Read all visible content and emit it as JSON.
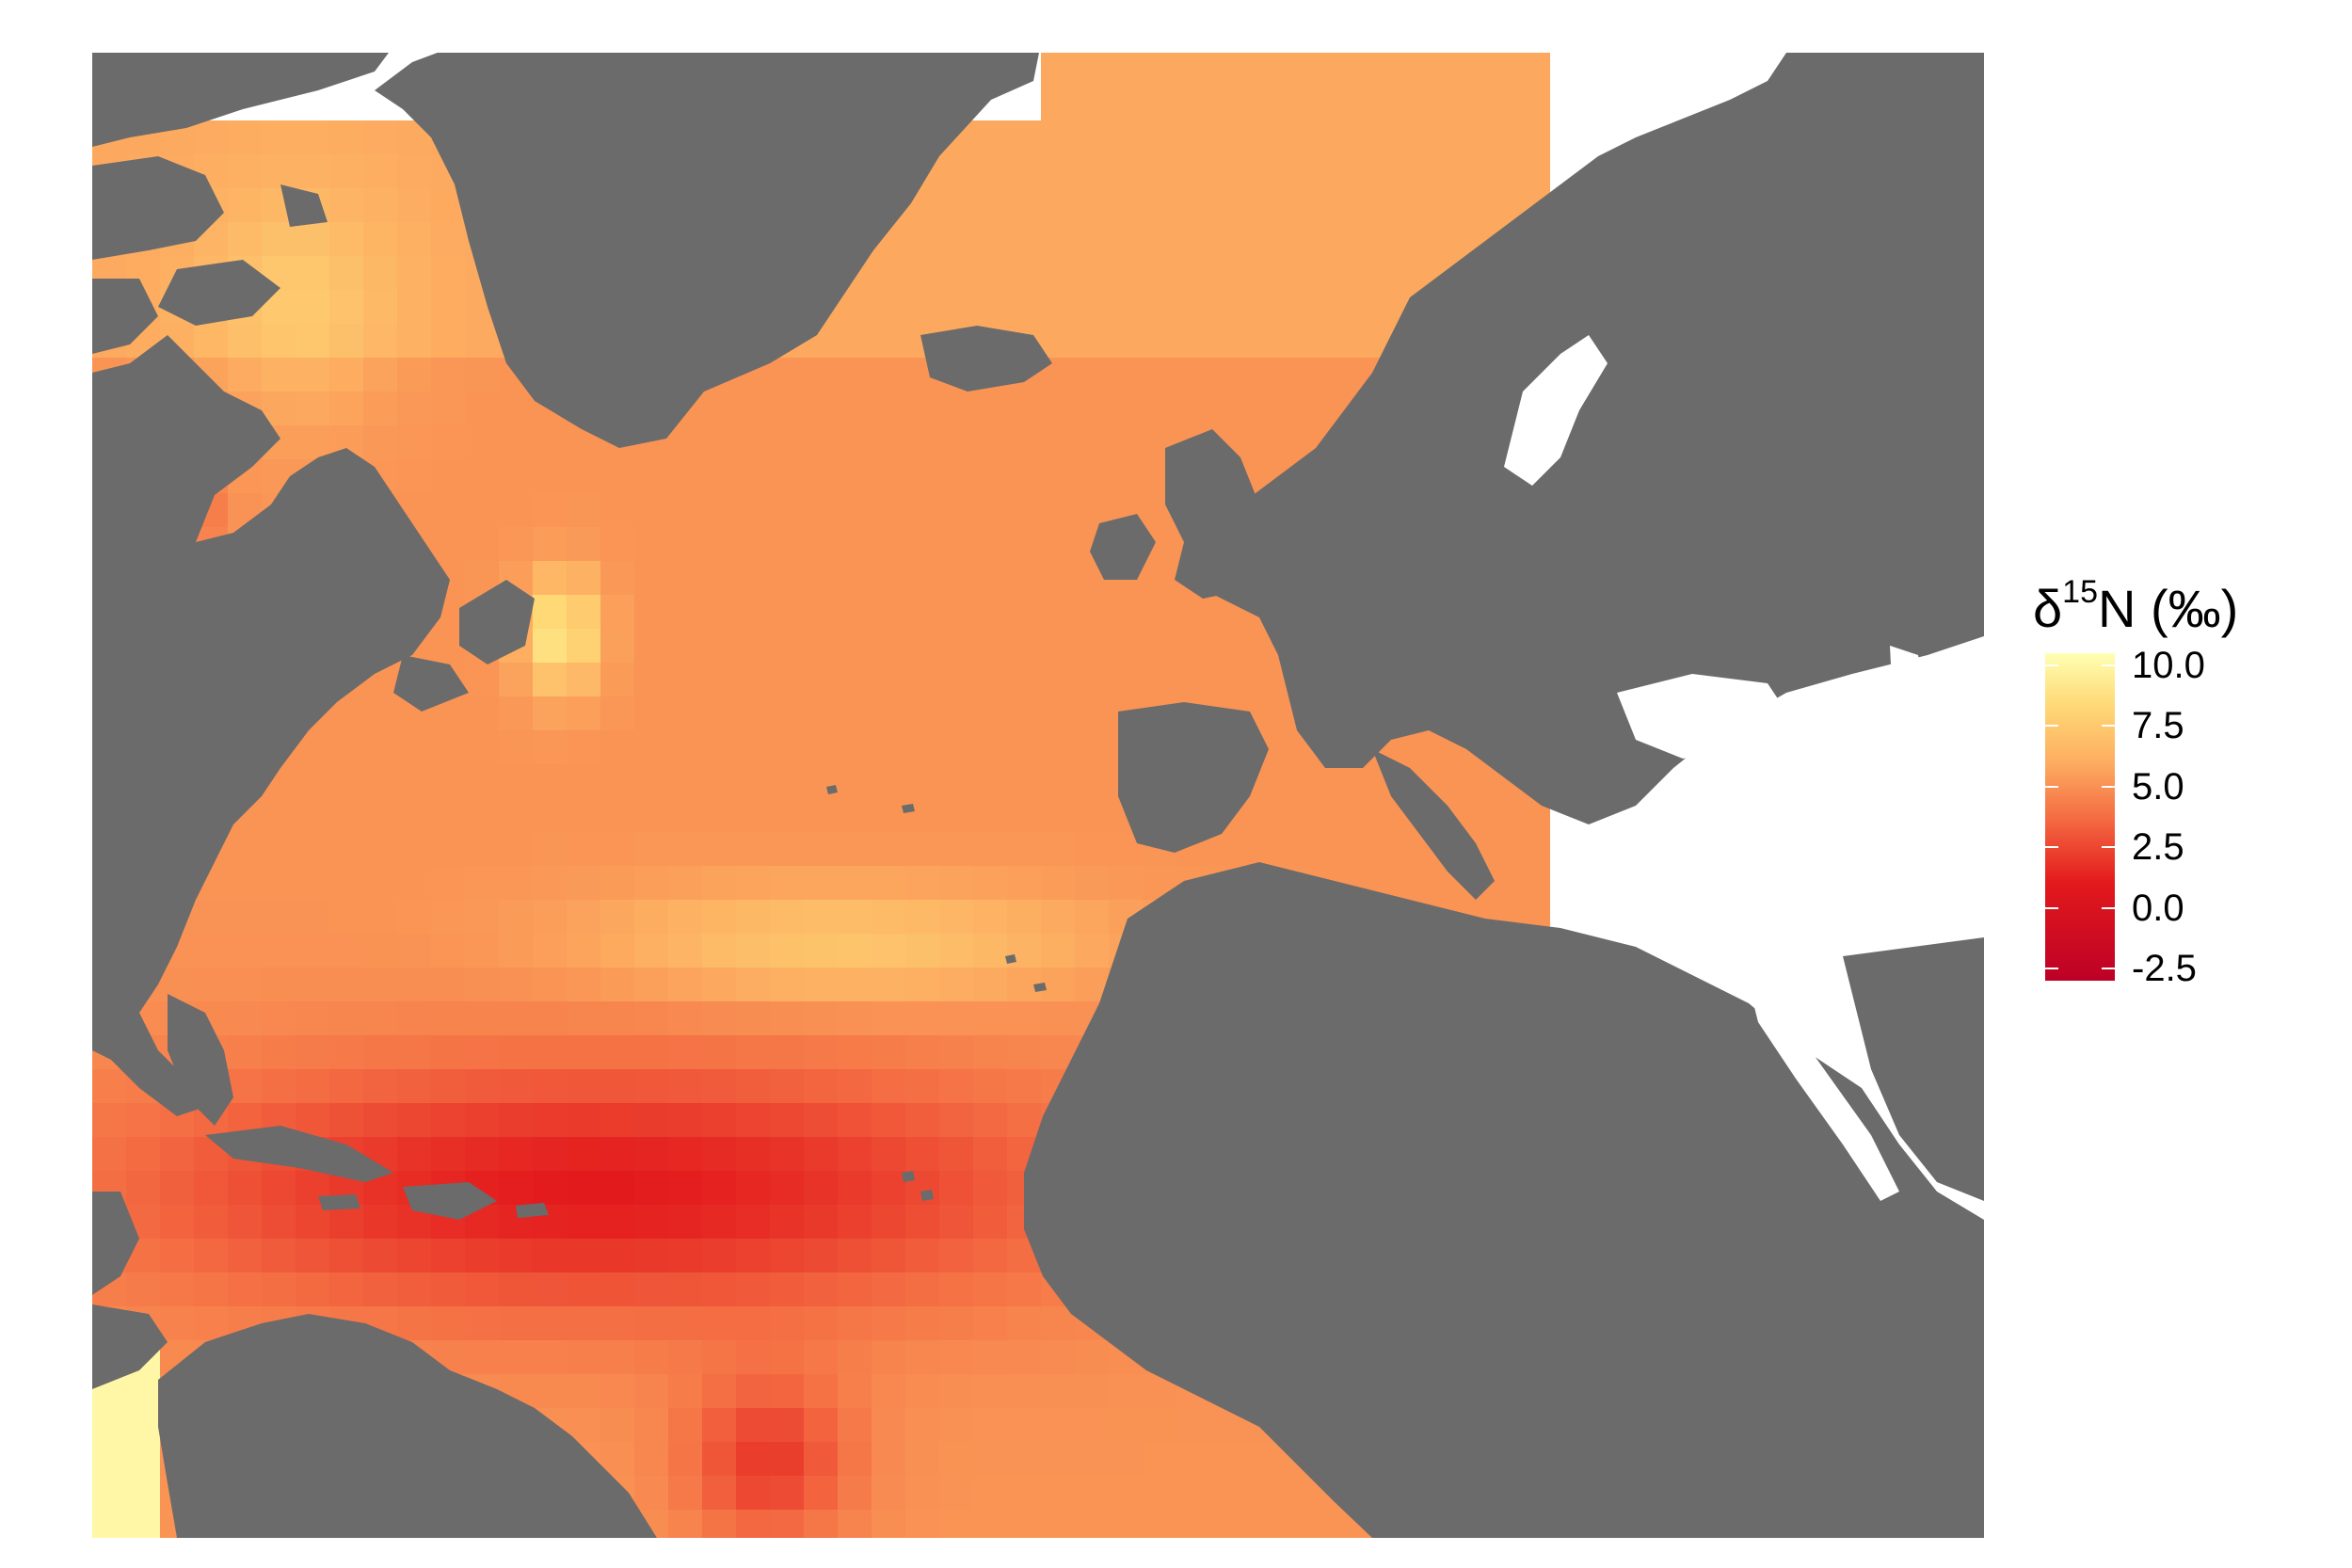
{
  "legend": {
    "title_prefix": "δ",
    "title_superscript": "15",
    "title_suffix": "N (‰)",
    "ticks": [
      "10.0",
      "7.5",
      "5.0",
      "2.5",
      "0.0",
      "-2.5"
    ],
    "colors": [
      "#ffffb2",
      "#fed976",
      "#fdae61",
      "#f46d43",
      "#e31a1c",
      "#bd0026"
    ],
    "value_range": [
      -3.0,
      10.5
    ]
  },
  "map": {
    "region": "North Atlantic Ocean",
    "land_color": "#6b6b6b",
    "background_color": "#ffffff",
    "field": "delta15N_permil",
    "ocean_grid_description": "gridded isoscape cells colored by δ15N value"
  }
}
